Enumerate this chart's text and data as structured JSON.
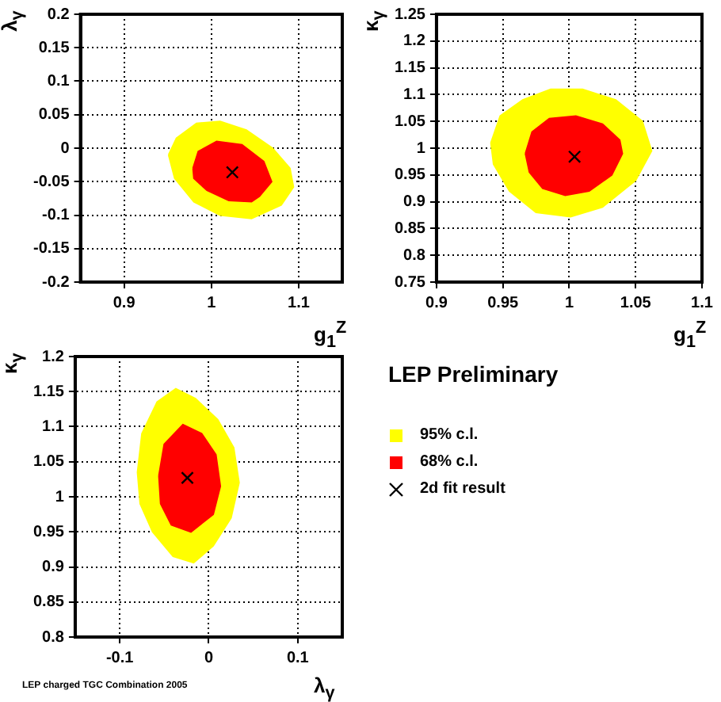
{
  "chart_data": [
    {
      "type": "scatter",
      "xlabel": "g$_{1}$$^{Z}$",
      "ylabel": "λ$_{γ}$",
      "xlim": [
        0.85,
        1.15
      ],
      "xticks": [
        0.9,
        1,
        1.1
      ],
      "ylim": [
        -0.2,
        0.2
      ],
      "yticks": [
        -0.2,
        -0.15,
        -0.1,
        -0.05,
        0,
        0.05,
        0.1,
        0.15,
        0.2
      ],
      "grid": true,
      "series": [
        {
          "type": "area",
          "color": "#ffff00",
          "x": [
            0.951,
            0.96,
            0.983,
            1.01,
            1.04,
            1.07,
            1.09,
            1.094,
            1.08,
            1.046,
            1.01,
            0.98,
            0.958,
            0.951
          ],
          "values": [
            -0.01,
            0.015,
            0.037,
            0.04,
            0.027,
            0,
            -0.03,
            -0.058,
            -0.085,
            -0.105,
            -0.1,
            -0.08,
            -0.045,
            -0.01
          ]
        },
        {
          "type": "area",
          "color": "#ff0000",
          "x": [
            0.979,
            0.985,
            1.006,
            1.035,
            1.06,
            1.069,
            1.055,
            1.046,
            1.02,
            0.995,
            0.98,
            0.979
          ],
          "values": [
            -0.03,
            -0.005,
            0.01,
            0.005,
            -0.02,
            -0.05,
            -0.072,
            -0.08,
            -0.078,
            -0.063,
            -0.045,
            -0.03
          ]
        },
        {
          "type": "scatter",
          "color": "#000000",
          "marker": "cross",
          "x": [
            1.024
          ],
          "values": [
            -0.036
          ]
        }
      ]
    },
    {
      "type": "scatter",
      "xlabel": "g$_{1}$$^{Z}$",
      "ylabel": "κ$_{γ}$",
      "xlim": [
        0.9,
        1.1
      ],
      "xticks": [
        0.9,
        0.95,
        1,
        1.05,
        1.1
      ],
      "ylim": [
        0.75,
        1.25
      ],
      "yticks": [
        0.75,
        0.8,
        0.85,
        0.9,
        0.95,
        1,
        1.05,
        1.1,
        1.15,
        1.2,
        1.25
      ],
      "grid": true,
      "series": [
        {
          "type": "area",
          "color": "#ffff00",
          "x": [
            0.941,
            0.948,
            0.965,
            0.986,
            1.01,
            1.035,
            1.055,
            1.062,
            1.05,
            1.025,
            1.001,
            0.975,
            0.955,
            0.943,
            0.941
          ],
          "values": [
            1.01,
            1.06,
            1.09,
            1.11,
            1.11,
            1.09,
            1.05,
            0.995,
            0.94,
            0.89,
            0.872,
            0.88,
            0.92,
            0.97,
            1.01
          ]
        },
        {
          "type": "area",
          "color": "#ff0000",
          "x": [
            0.967,
            0.972,
            0.985,
            1.005,
            1.025,
            1.038,
            1.04,
            1.032,
            1.015,
            0.997,
            0.98,
            0.97,
            0.967
          ],
          "values": [
            0.99,
            1.03,
            1.055,
            1.06,
            1.045,
            1.015,
            0.99,
            0.95,
            0.92,
            0.912,
            0.925,
            0.955,
            0.99
          ]
        },
        {
          "type": "scatter",
          "color": "#000000",
          "marker": "cross",
          "x": [
            1.004
          ],
          "values": [
            0.984
          ]
        }
      ]
    },
    {
      "type": "scatter",
      "xlabel": "λ$_{γ}$",
      "ylabel": "κ$_{γ}$",
      "xlim": [
        -0.15,
        0.15
      ],
      "xticks": [
        -0.1,
        0,
        0.1
      ],
      "ylim": [
        0.8,
        1.2
      ],
      "yticks": [
        0.8,
        0.85,
        0.9,
        0.95,
        1,
        1.05,
        1.1,
        1.15,
        1.2
      ],
      "grid": true,
      "legend": "right",
      "legend_title": "LEP Preliminary",
      "annotations": [
        "LEP charged TGC Combination 2005"
      ],
      "series": [
        {
          "name": "95% c.l.",
          "type": "area",
          "color": "#ffff00",
          "x": [
            -0.08,
            -0.075,
            -0.058,
            -0.037,
            -0.015,
            0.01,
            0.028,
            0.034,
            0.025,
            0.005,
            -0.017,
            -0.04,
            -0.063,
            -0.077,
            -0.08
          ],
          "values": [
            1.035,
            1.09,
            1.135,
            1.154,
            1.14,
            1.11,
            1.07,
            1.02,
            0.97,
            0.93,
            0.906,
            0.915,
            0.95,
            0.99,
            1.035
          ]
        },
        {
          "name": "68% c.l.",
          "type": "area",
          "color": "#ff0000",
          "x": [
            -0.056,
            -0.05,
            -0.029,
            -0.008,
            0.008,
            0.013,
            0.005,
            -0.02,
            -0.042,
            -0.054,
            -0.056
          ],
          "values": [
            1.03,
            1.075,
            1.103,
            1.09,
            1.06,
            1.015,
            0.975,
            0.95,
            0.96,
            0.99,
            1.03
          ]
        },
        {
          "name": "2d fit result",
          "type": "scatter",
          "color": "#000000",
          "marker": "cross",
          "x": [
            -0.024
          ],
          "values": [
            1.027
          ]
        }
      ]
    }
  ]
}
